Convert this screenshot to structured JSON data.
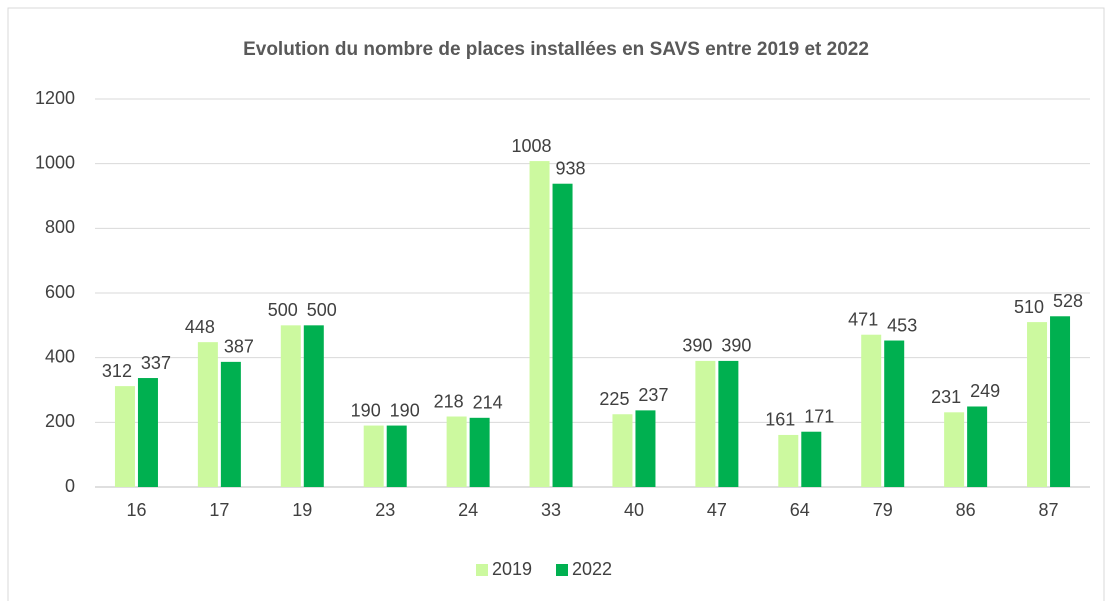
{
  "chart_data": {
    "type": "bar",
    "title": "Evolution du nombre de places installées en SAVS entre 2019 et 2022",
    "categories": [
      "16",
      "17",
      "19",
      "23",
      "24",
      "33",
      "40",
      "47",
      "64",
      "79",
      "86",
      "87"
    ],
    "series": [
      {
        "name": "2019",
        "color": "#ccf99f",
        "values": [
          312,
          448,
          500,
          190,
          218,
          1008,
          225,
          390,
          161,
          471,
          231,
          510
        ]
      },
      {
        "name": "2022",
        "color": "#00b050",
        "values": [
          337,
          387,
          500,
          190,
          214,
          938,
          237,
          390,
          171,
          453,
          249,
          528
        ]
      }
    ],
    "ylim": [
      0,
      1200
    ],
    "yticks": [
      0,
      200,
      400,
      600,
      800,
      1000,
      1200
    ],
    "grid": true,
    "legend": "bottom"
  }
}
